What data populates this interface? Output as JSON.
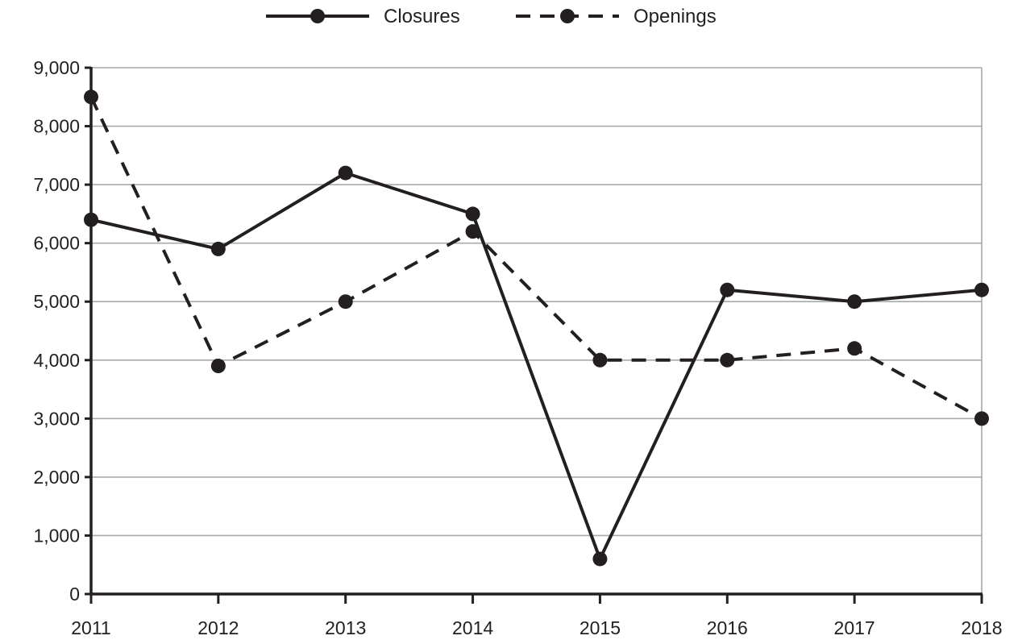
{
  "chart_data": {
    "type": "line",
    "categories": [
      "2011",
      "2012",
      "2013",
      "2014",
      "2015",
      "2016",
      "2017",
      "2018"
    ],
    "series": [
      {
        "name": "Closures",
        "line_style": "solid",
        "values": [
          6400,
          5900,
          7200,
          6500,
          600,
          5200,
          5000,
          5200
        ]
      },
      {
        "name": "Openings",
        "line_style": "dashed",
        "values": [
          8500,
          3900,
          5000,
          6200,
          4000,
          4000,
          4200,
          3000
        ]
      }
    ],
    "yticks": [
      "0",
      "1,000",
      "2,000",
      "3,000",
      "4,000",
      "5,000",
      "6,000",
      "7,000",
      "8,000",
      "9,000"
    ],
    "ylim": [
      0,
      9000
    ],
    "grid": "horizontal",
    "legend_position": "top-center",
    "colors": {
      "line": "#231f20",
      "grid": "#a7a9ac",
      "axis": "#231f20",
      "background": "#ffffff"
    }
  }
}
